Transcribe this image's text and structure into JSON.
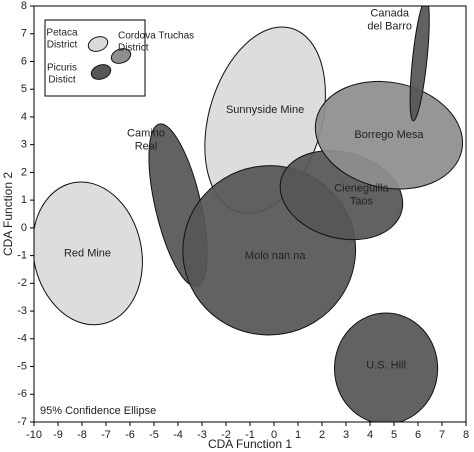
{
  "chart_data": {
    "type": "ellipse",
    "xlabel": "CDA Function 1",
    "ylabel": "CDA Function 2",
    "annotation": "95% Confidence Ellipse",
    "xlim": [
      -10,
      8
    ],
    "xticks": [
      -10,
      -9,
      -8,
      -7,
      -6,
      -5,
      -4,
      -3,
      -2,
      -1,
      0,
      1,
      2,
      3,
      4,
      5,
      6,
      7,
      8
    ],
    "ylim": [
      -7,
      8
    ],
    "yticks": [
      -7,
      -6,
      -5,
      -4,
      -3,
      -2,
      -1,
      0,
      1,
      2,
      3,
      4,
      5,
      6,
      7,
      8
    ],
    "groups": [
      {
        "name": [
          "Petaca",
          "District"
        ],
        "color": "#dadada"
      },
      {
        "name": [
          "Cordova Truchas",
          "District"
        ],
        "color": "#8e8e8e"
      },
      {
        "name": [
          "Picuris",
          "Distict"
        ],
        "color": "#565656"
      }
    ],
    "series": [
      {
        "name": [
          "Red Mine"
        ],
        "group": 0,
        "x": -7.77,
        "y": -0.92,
        "rx": 2.25,
        "ry": 2.6,
        "angle": -12
      },
      {
        "name": [
          "Camino",
          "Real"
        ],
        "group": 2,
        "x": -4.0,
        "y": 0.82,
        "rx": 0.95,
        "ry": 3.0,
        "angle": -13
      },
      {
        "name": [
          "Sunnyside Mine"
        ],
        "group": 0,
        "x": -0.37,
        "y": 3.88,
        "rx": 2.35,
        "ry": 3.45,
        "angle": 16
      },
      {
        "name": [
          "Molo nan na"
        ],
        "group": 2,
        "x": -0.2,
        "y": -0.81,
        "rx": 3.6,
        "ry": 3.05,
        "angle": -10
      },
      {
        "name": [
          "Cieneguilla",
          "Taos"
        ],
        "group": 2,
        "x": 2.81,
        "y": 1.18,
        "rx": 2.6,
        "ry": 1.55,
        "angle": 15
      },
      {
        "name": [
          "Borrego Mesa"
        ],
        "group": 1,
        "x": 4.79,
        "y": 3.34,
        "rx": 3.1,
        "ry": 1.9,
        "angle": 12
      },
      {
        "name": [
          "Canada",
          "del Barro"
        ],
        "group": 2,
        "x": 6.07,
        "y": 6.05,
        "rx": 0.3,
        "ry": 2.2,
        "angle": 6
      },
      {
        "name": [
          "U.S. Hill"
        ],
        "group": 2,
        "x": 4.67,
        "y": -5.07,
        "rx": 2.15,
        "ry": 2.0,
        "angle": 0
      }
    ]
  }
}
